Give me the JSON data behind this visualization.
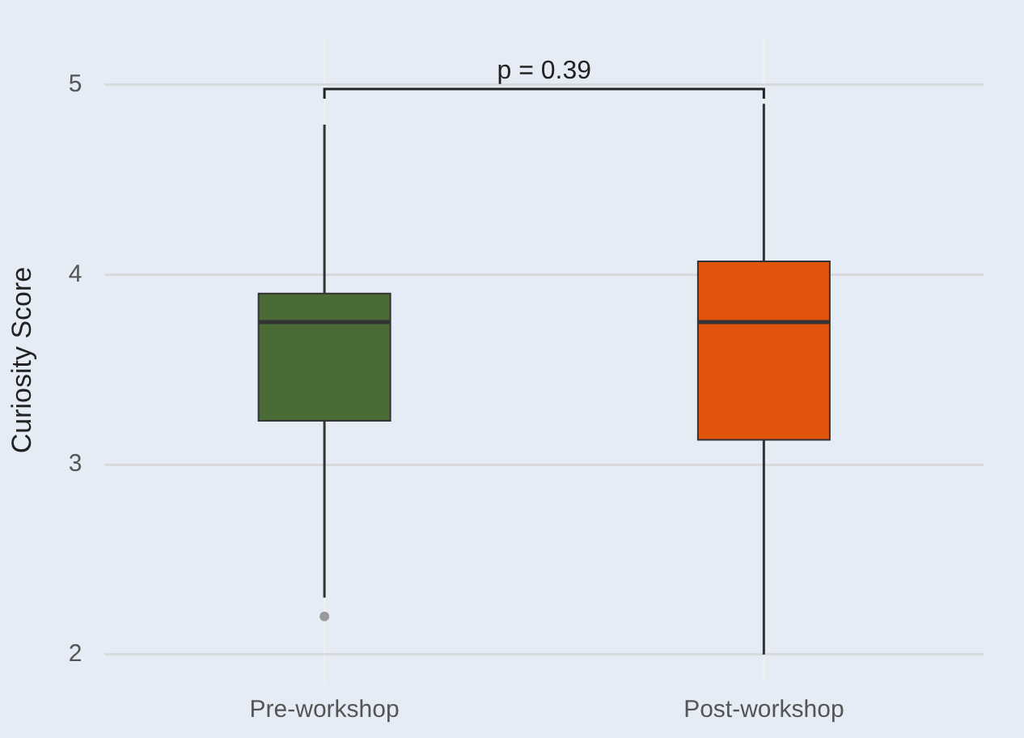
{
  "chart_data": {
    "type": "box",
    "ylabel": "Curiosity Score",
    "categories": [
      "Pre-workshop",
      "Post-workshop"
    ],
    "colors": [
      "#4a6b35",
      "#e0550b"
    ],
    "boxes": [
      {
        "low": 2.3,
        "q1": 3.23,
        "median": 3.75,
        "q3": 3.9,
        "high": 4.79,
        "outliers": [
          2.2
        ]
      },
      {
        "low": 2.0,
        "q1": 3.13,
        "median": 3.75,
        "q3": 4.07,
        "high": 4.9
      }
    ],
    "ylim": [
      1.85,
      5.25
    ],
    "yticks": [
      2,
      3,
      4,
      5
    ],
    "grid": true,
    "legend": false,
    "annotations": [
      "p = 0.39"
    ]
  }
}
